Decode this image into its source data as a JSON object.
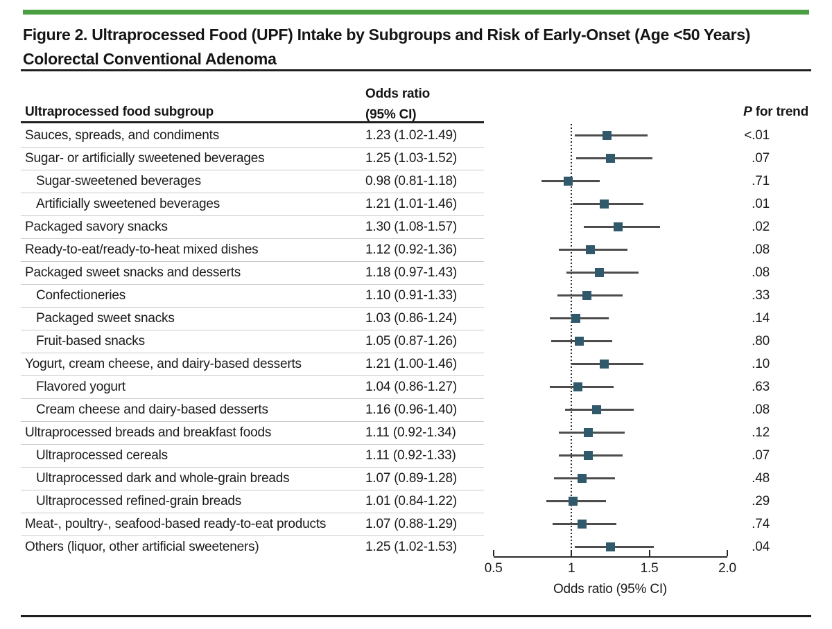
{
  "figure": {
    "title_line1": "Figure 2. Ultraprocessed Food (UPF) Intake by Subgroups and Risk of Early-Onset (Age <50 Years)",
    "title_line2": "Colorectal Conventional Adenoma"
  },
  "table": {
    "col_subgroup_header": "Ultraprocessed food subgroup",
    "col_or_header_line1": "Odds ratio",
    "col_or_header_line2": "(95% CI)",
    "col_p_header_italic": "P",
    "col_p_header_rest": " for trend"
  },
  "colors": {
    "accent_green": "#4a9f42",
    "marker_teal": "#305a6c",
    "ci_line_gray": "#4d4d4d",
    "rule_dark": "#1f1f1f",
    "separator_gray": "#c9c9c9"
  },
  "chart_data": {
    "type": "forest",
    "xlabel": "Odds ratio (95% CI)",
    "xlim": [
      0.5,
      2.0
    ],
    "reference_line": 1.0,
    "x_ticks": [
      {
        "value": 0.5,
        "label": "0.5"
      },
      {
        "value": 1.0,
        "label": "1"
      },
      {
        "value": 1.5,
        "label": "1.5"
      },
      {
        "value": 2.0,
        "label": "2.0"
      }
    ],
    "rows": [
      {
        "label": "Sauces, spreads, and condiments",
        "indent": 0,
        "or": 1.23,
        "ci_low": 1.02,
        "ci_high": 1.49,
        "or_text": "1.23 (1.02-1.49)",
        "p": "<.01"
      },
      {
        "label": "Sugar- or artificially sweetened beverages",
        "indent": 0,
        "or": 1.25,
        "ci_low": 1.03,
        "ci_high": 1.52,
        "or_text": "1.25 (1.03-1.52)",
        "p": ".07"
      },
      {
        "label": "Sugar-sweetened beverages",
        "indent": 1,
        "or": 0.98,
        "ci_low": 0.81,
        "ci_high": 1.18,
        "or_text": "0.98 (0.81-1.18)",
        "p": ".71"
      },
      {
        "label": "Artificially sweetened beverages",
        "indent": 1,
        "or": 1.21,
        "ci_low": 1.01,
        "ci_high": 1.46,
        "or_text": "1.21 (1.01-1.46)",
        "p": ".01"
      },
      {
        "label": "Packaged savory snacks",
        "indent": 0,
        "or": 1.3,
        "ci_low": 1.08,
        "ci_high": 1.57,
        "or_text": "1.30 (1.08-1.57)",
        "p": ".02"
      },
      {
        "label": "Ready-to-eat/ready-to-heat mixed dishes",
        "indent": 0,
        "or": 1.12,
        "ci_low": 0.92,
        "ci_high": 1.36,
        "or_text": "1.12 (0.92-1.36)",
        "p": ".08"
      },
      {
        "label": "Packaged sweet snacks and desserts",
        "indent": 0,
        "or": 1.18,
        "ci_low": 0.97,
        "ci_high": 1.43,
        "or_text": "1.18 (0.97-1.43)",
        "p": ".08"
      },
      {
        "label": "Confectioneries",
        "indent": 1,
        "or": 1.1,
        "ci_low": 0.91,
        "ci_high": 1.33,
        "or_text": "1.10 (0.91-1.33)",
        "p": ".33"
      },
      {
        "label": "Packaged sweet snacks",
        "indent": 1,
        "or": 1.03,
        "ci_low": 0.86,
        "ci_high": 1.24,
        "or_text": "1.03 (0.86-1.24)",
        "p": ".14"
      },
      {
        "label": "Fruit-based snacks",
        "indent": 1,
        "or": 1.05,
        "ci_low": 0.87,
        "ci_high": 1.26,
        "or_text": "1.05 (0.87-1.26)",
        "p": ".80"
      },
      {
        "label": "Yogurt, cream cheese, and dairy-based desserts",
        "indent": 0,
        "or": 1.21,
        "ci_low": 1.0,
        "ci_high": 1.46,
        "or_text": "1.21 (1.00-1.46)",
        "p": ".10"
      },
      {
        "label": "Flavored yogurt",
        "indent": 1,
        "or": 1.04,
        "ci_low": 0.86,
        "ci_high": 1.27,
        "or_text": "1.04 (0.86-1.27)",
        "p": ".63"
      },
      {
        "label": "Cream cheese and dairy-based desserts",
        "indent": 1,
        "or": 1.16,
        "ci_low": 0.96,
        "ci_high": 1.4,
        "or_text": "1.16 (0.96-1.40)",
        "p": ".08"
      },
      {
        "label": "Ultraprocessed breads and breakfast foods",
        "indent": 0,
        "or": 1.11,
        "ci_low": 0.92,
        "ci_high": 1.34,
        "or_text": "1.11 (0.92-1.34)",
        "p": ".12"
      },
      {
        "label": "Ultraprocessed cereals",
        "indent": 1,
        "or": 1.11,
        "ci_low": 0.92,
        "ci_high": 1.33,
        "or_text": "1.11 (0.92-1.33)",
        "p": ".07"
      },
      {
        "label": "Ultraprocessed dark and whole-grain breads",
        "indent": 1,
        "or": 1.07,
        "ci_low": 0.89,
        "ci_high": 1.28,
        "or_text": "1.07 (0.89-1.28)",
        "p": ".48"
      },
      {
        "label": "Ultraprocessed refined-grain breads",
        "indent": 1,
        "or": 1.01,
        "ci_low": 0.84,
        "ci_high": 1.22,
        "or_text": "1.01 (0.84-1.22)",
        "p": ".29"
      },
      {
        "label": "Meat-, poultry-, seafood-based ready-to-eat products",
        "indent": 0,
        "or": 1.07,
        "ci_low": 0.88,
        "ci_high": 1.29,
        "or_text": "1.07 (0.88-1.29)",
        "p": ".74"
      },
      {
        "label": "Others (liquor, other artificial sweeteners)",
        "indent": 0,
        "or": 1.25,
        "ci_low": 1.02,
        "ci_high": 1.53,
        "or_text": "1.25 (1.02-1.53)",
        "p": ".04"
      }
    ]
  }
}
